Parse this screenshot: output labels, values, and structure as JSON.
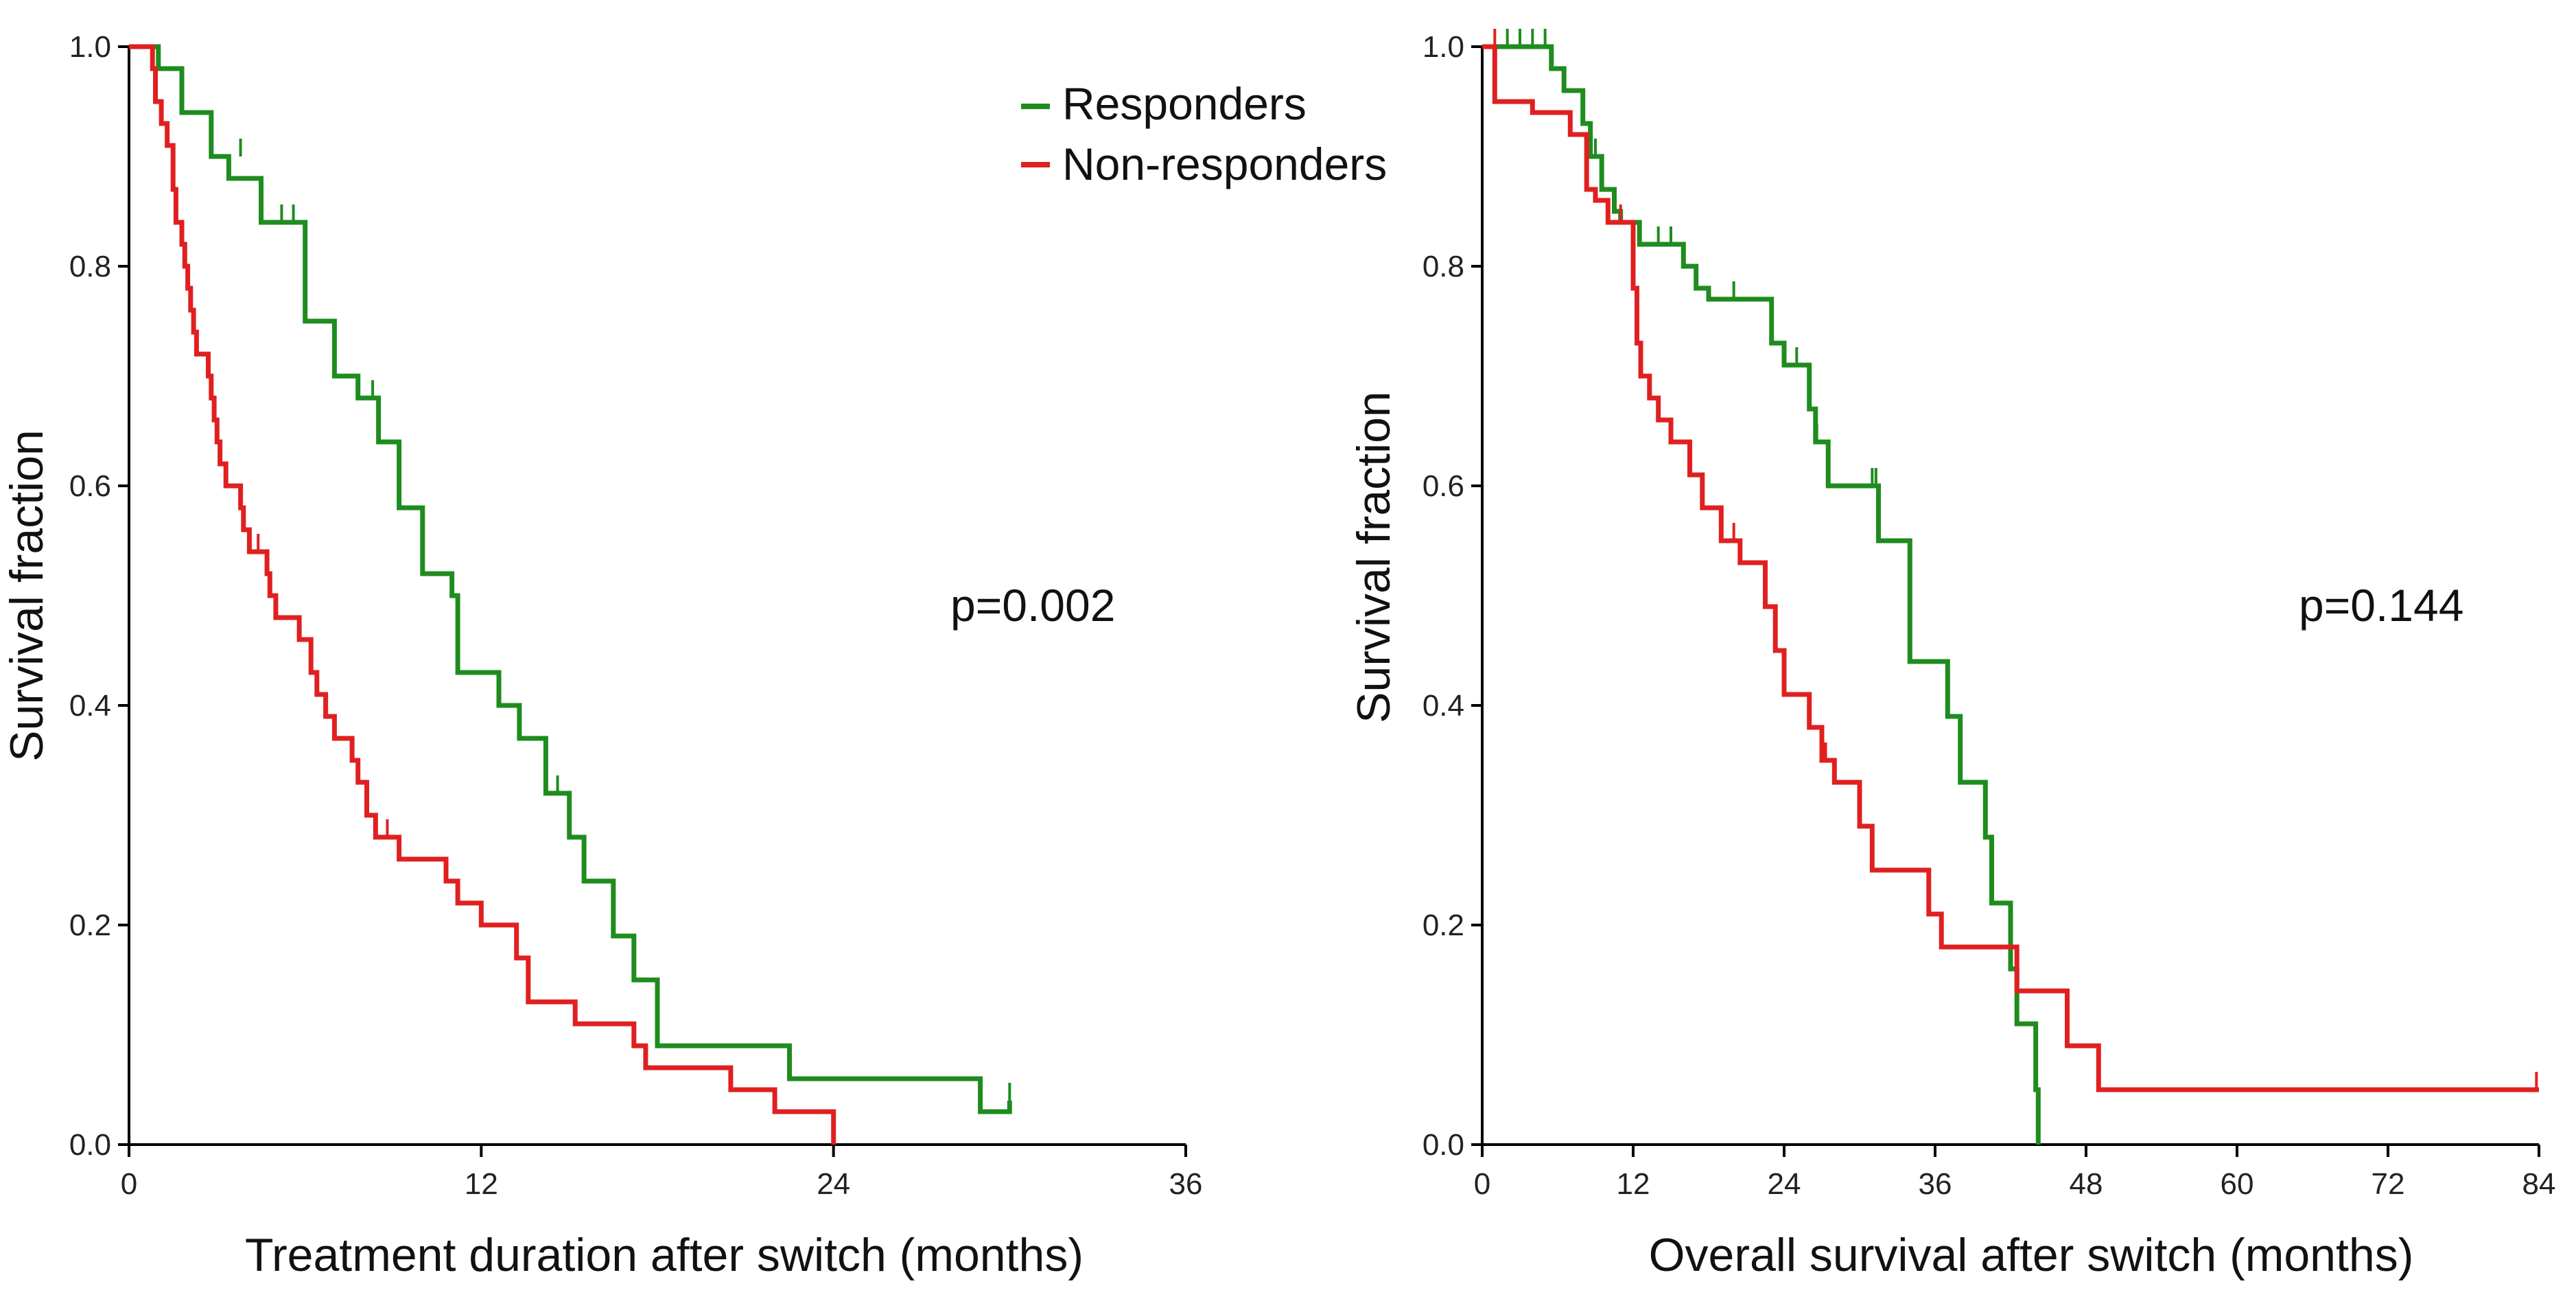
{
  "colors": {
    "responders": "#1e8c1e",
    "non_responders": "#e02020"
  },
  "legend": {
    "responders": "Responders",
    "non_responders": "Non-responders"
  },
  "chart_data": [
    {
      "type": "line",
      "title": "",
      "xlabel": "Treatment duration after switch (months)",
      "ylabel": "Survival fraction",
      "xlim": [
        0,
        36
      ],
      "ylim": [
        0,
        1
      ],
      "xticks": [
        0,
        12,
        24,
        36
      ],
      "xtick_labels": [
        "0",
        "12",
        "24",
        "36"
      ],
      "yticks": [
        0,
        0.2,
        0.4,
        0.6,
        0.8,
        1.0
      ],
      "ytick_labels": [
        "0.0",
        "0.2",
        "0.4",
        "0.6",
        "0.8",
        "1.0"
      ],
      "annotation": "p=0.002",
      "series": [
        {
          "name": "Responders",
          "color_key": "responders",
          "steps": [
            [
              0,
              1.0
            ],
            [
              1.0,
              0.98
            ],
            [
              1.8,
              0.94
            ],
            [
              2.8,
              0.9
            ],
            [
              3.4,
              0.88
            ],
            [
              4.5,
              0.84
            ],
            [
              6.0,
              0.75
            ],
            [
              7.0,
              0.7
            ],
            [
              7.8,
              0.68
            ],
            [
              8.5,
              0.64
            ],
            [
              9.2,
              0.58
            ],
            [
              10.0,
              0.52
            ],
            [
              11.0,
              0.5
            ],
            [
              11.2,
              0.43
            ],
            [
              12.6,
              0.4
            ],
            [
              13.3,
              0.37
            ],
            [
              14.2,
              0.32
            ],
            [
              15.0,
              0.28
            ],
            [
              15.5,
              0.24
            ],
            [
              16.5,
              0.19
            ],
            [
              17.2,
              0.15
            ],
            [
              18.0,
              0.09
            ],
            [
              22.5,
              0.06
            ],
            [
              29.0,
              0.03
            ],
            [
              30.0,
              0.04
            ]
          ],
          "end_x": 30.0,
          "censored": [
            [
              3.8,
              0.9
            ],
            [
              5.2,
              0.84
            ],
            [
              5.6,
              0.84
            ],
            [
              8.3,
              0.68
            ],
            [
              11.0,
              0.5
            ],
            [
              14.6,
              0.32
            ],
            [
              30.0,
              0.04
            ]
          ]
        },
        {
          "name": "Non-responders",
          "color_key": "non_responders",
          "steps": [
            [
              0,
              1.0
            ],
            [
              0.8,
              0.98
            ],
            [
              0.9,
              0.95
            ],
            [
              1.1,
              0.93
            ],
            [
              1.3,
              0.91
            ],
            [
              1.5,
              0.87
            ],
            [
              1.6,
              0.84
            ],
            [
              1.8,
              0.82
            ],
            [
              1.9,
              0.8
            ],
            [
              2.0,
              0.78
            ],
            [
              2.1,
              0.76
            ],
            [
              2.2,
              0.74
            ],
            [
              2.3,
              0.72
            ],
            [
              2.7,
              0.7
            ],
            [
              2.8,
              0.68
            ],
            [
              2.9,
              0.66
            ],
            [
              3.0,
              0.64
            ],
            [
              3.1,
              0.62
            ],
            [
              3.3,
              0.6
            ],
            [
              3.8,
              0.58
            ],
            [
              3.9,
              0.56
            ],
            [
              4.1,
              0.54
            ],
            [
              4.7,
              0.52
            ],
            [
              4.8,
              0.5
            ],
            [
              5.0,
              0.48
            ],
            [
              5.8,
              0.46
            ],
            [
              6.2,
              0.43
            ],
            [
              6.4,
              0.41
            ],
            [
              6.7,
              0.39
            ],
            [
              7.0,
              0.37
            ],
            [
              7.6,
              0.35
            ],
            [
              7.8,
              0.33
            ],
            [
              8.1,
              0.3
            ],
            [
              8.4,
              0.28
            ],
            [
              9.2,
              0.26
            ],
            [
              10.8,
              0.24
            ],
            [
              11.2,
              0.22
            ],
            [
              12.0,
              0.2
            ],
            [
              13.2,
              0.17
            ],
            [
              13.6,
              0.13
            ],
            [
              15.2,
              0.11
            ],
            [
              17.2,
              0.09
            ],
            [
              17.6,
              0.07
            ],
            [
              20.5,
              0.05
            ],
            [
              22.0,
              0.03
            ],
            [
              24.0,
              0.0
            ]
          ],
          "end_x": 24.0,
          "censored": [
            [
              4.4,
              0.54
            ],
            [
              8.8,
              0.28
            ]
          ]
        }
      ]
    },
    {
      "type": "line",
      "title": "",
      "xlabel": "Overall survival after switch (months)",
      "ylabel": "Survival fraction",
      "xlim": [
        0,
        84
      ],
      "ylim": [
        0,
        1
      ],
      "xticks": [
        0,
        12,
        24,
        36,
        48,
        60,
        72,
        84
      ],
      "xtick_labels": [
        "0",
        "12",
        "24",
        "36",
        "48",
        "60",
        "72",
        "84"
      ],
      "yticks": [
        0,
        0.2,
        0.4,
        0.6,
        0.8,
        1.0
      ],
      "ytick_labels": [
        "0.0",
        "0.2",
        "0.4",
        "0.6",
        "0.8",
        "1.0"
      ],
      "annotation": "p=0.144",
      "series": [
        {
          "name": "Responders",
          "color_key": "responders",
          "steps": [
            [
              0,
              1.0
            ],
            [
              5.5,
              0.98
            ],
            [
              6.5,
              0.96
            ],
            [
              8.0,
              0.93
            ],
            [
              8.6,
              0.9
            ],
            [
              9.5,
              0.87
            ],
            [
              10.5,
              0.85
            ],
            [
              11.0,
              0.84
            ],
            [
              12.5,
              0.82
            ],
            [
              16.0,
              0.8
            ],
            [
              17.0,
              0.78
            ],
            [
              18.0,
              0.77
            ],
            [
              23.0,
              0.73
            ],
            [
              24.0,
              0.71
            ],
            [
              26.0,
              0.67
            ],
            [
              26.5,
              0.64
            ],
            [
              27.5,
              0.6
            ],
            [
              31.5,
              0.55
            ],
            [
              34.0,
              0.44
            ],
            [
              37.0,
              0.39
            ],
            [
              38.0,
              0.33
            ],
            [
              40.0,
              0.28
            ],
            [
              40.5,
              0.22
            ],
            [
              42.0,
              0.16
            ],
            [
              42.5,
              0.11
            ],
            [
              44.0,
              0.05
            ],
            [
              44.2,
              0.0
            ]
          ],
          "end_x": 44.2,
          "censored": [
            [
              2.0,
              1.0
            ],
            [
              3.0,
              1.0
            ],
            [
              4.0,
              1.0
            ],
            [
              5.0,
              1.0
            ],
            [
              9.0,
              0.9
            ],
            [
              14.0,
              0.82
            ],
            [
              15.0,
              0.82
            ],
            [
              20.0,
              0.77
            ],
            [
              25.0,
              0.71
            ],
            [
              26.6,
              0.64
            ],
            [
              31.0,
              0.6
            ],
            [
              31.3,
              0.6
            ]
          ]
        },
        {
          "name": "Non-responders",
          "color_key": "non_responders",
          "steps": [
            [
              0,
              1.0
            ],
            [
              1.0,
              0.95
            ],
            [
              4.0,
              0.94
            ],
            [
              7.0,
              0.92
            ],
            [
              8.3,
              0.87
            ],
            [
              9.0,
              0.86
            ],
            [
              10.0,
              0.84
            ],
            [
              12.0,
              0.78
            ],
            [
              12.3,
              0.73
            ],
            [
              12.6,
              0.7
            ],
            [
              13.3,
              0.68
            ],
            [
              14.0,
              0.66
            ],
            [
              15.0,
              0.64
            ],
            [
              16.5,
              0.61
            ],
            [
              17.5,
              0.58
            ],
            [
              19.0,
              0.55
            ],
            [
              20.5,
              0.53
            ],
            [
              22.5,
              0.49
            ],
            [
              23.3,
              0.45
            ],
            [
              24.0,
              0.41
            ],
            [
              26.0,
              0.38
            ],
            [
              27.0,
              0.35
            ],
            [
              28.0,
              0.33
            ],
            [
              30.0,
              0.29
            ],
            [
              31.0,
              0.25
            ],
            [
              35.5,
              0.21
            ],
            [
              36.5,
              0.18
            ],
            [
              42.5,
              0.14
            ],
            [
              46.5,
              0.09
            ],
            [
              49.0,
              0.05
            ],
            [
              84.0,
              0.05
            ]
          ],
          "end_x": 84.0,
          "censored": [
            [
              1.0,
              1.0
            ],
            [
              11.0,
              0.84
            ],
            [
              20.0,
              0.55
            ],
            [
              27.3,
              0.35
            ],
            [
              83.8,
              0.05
            ]
          ]
        }
      ]
    }
  ]
}
